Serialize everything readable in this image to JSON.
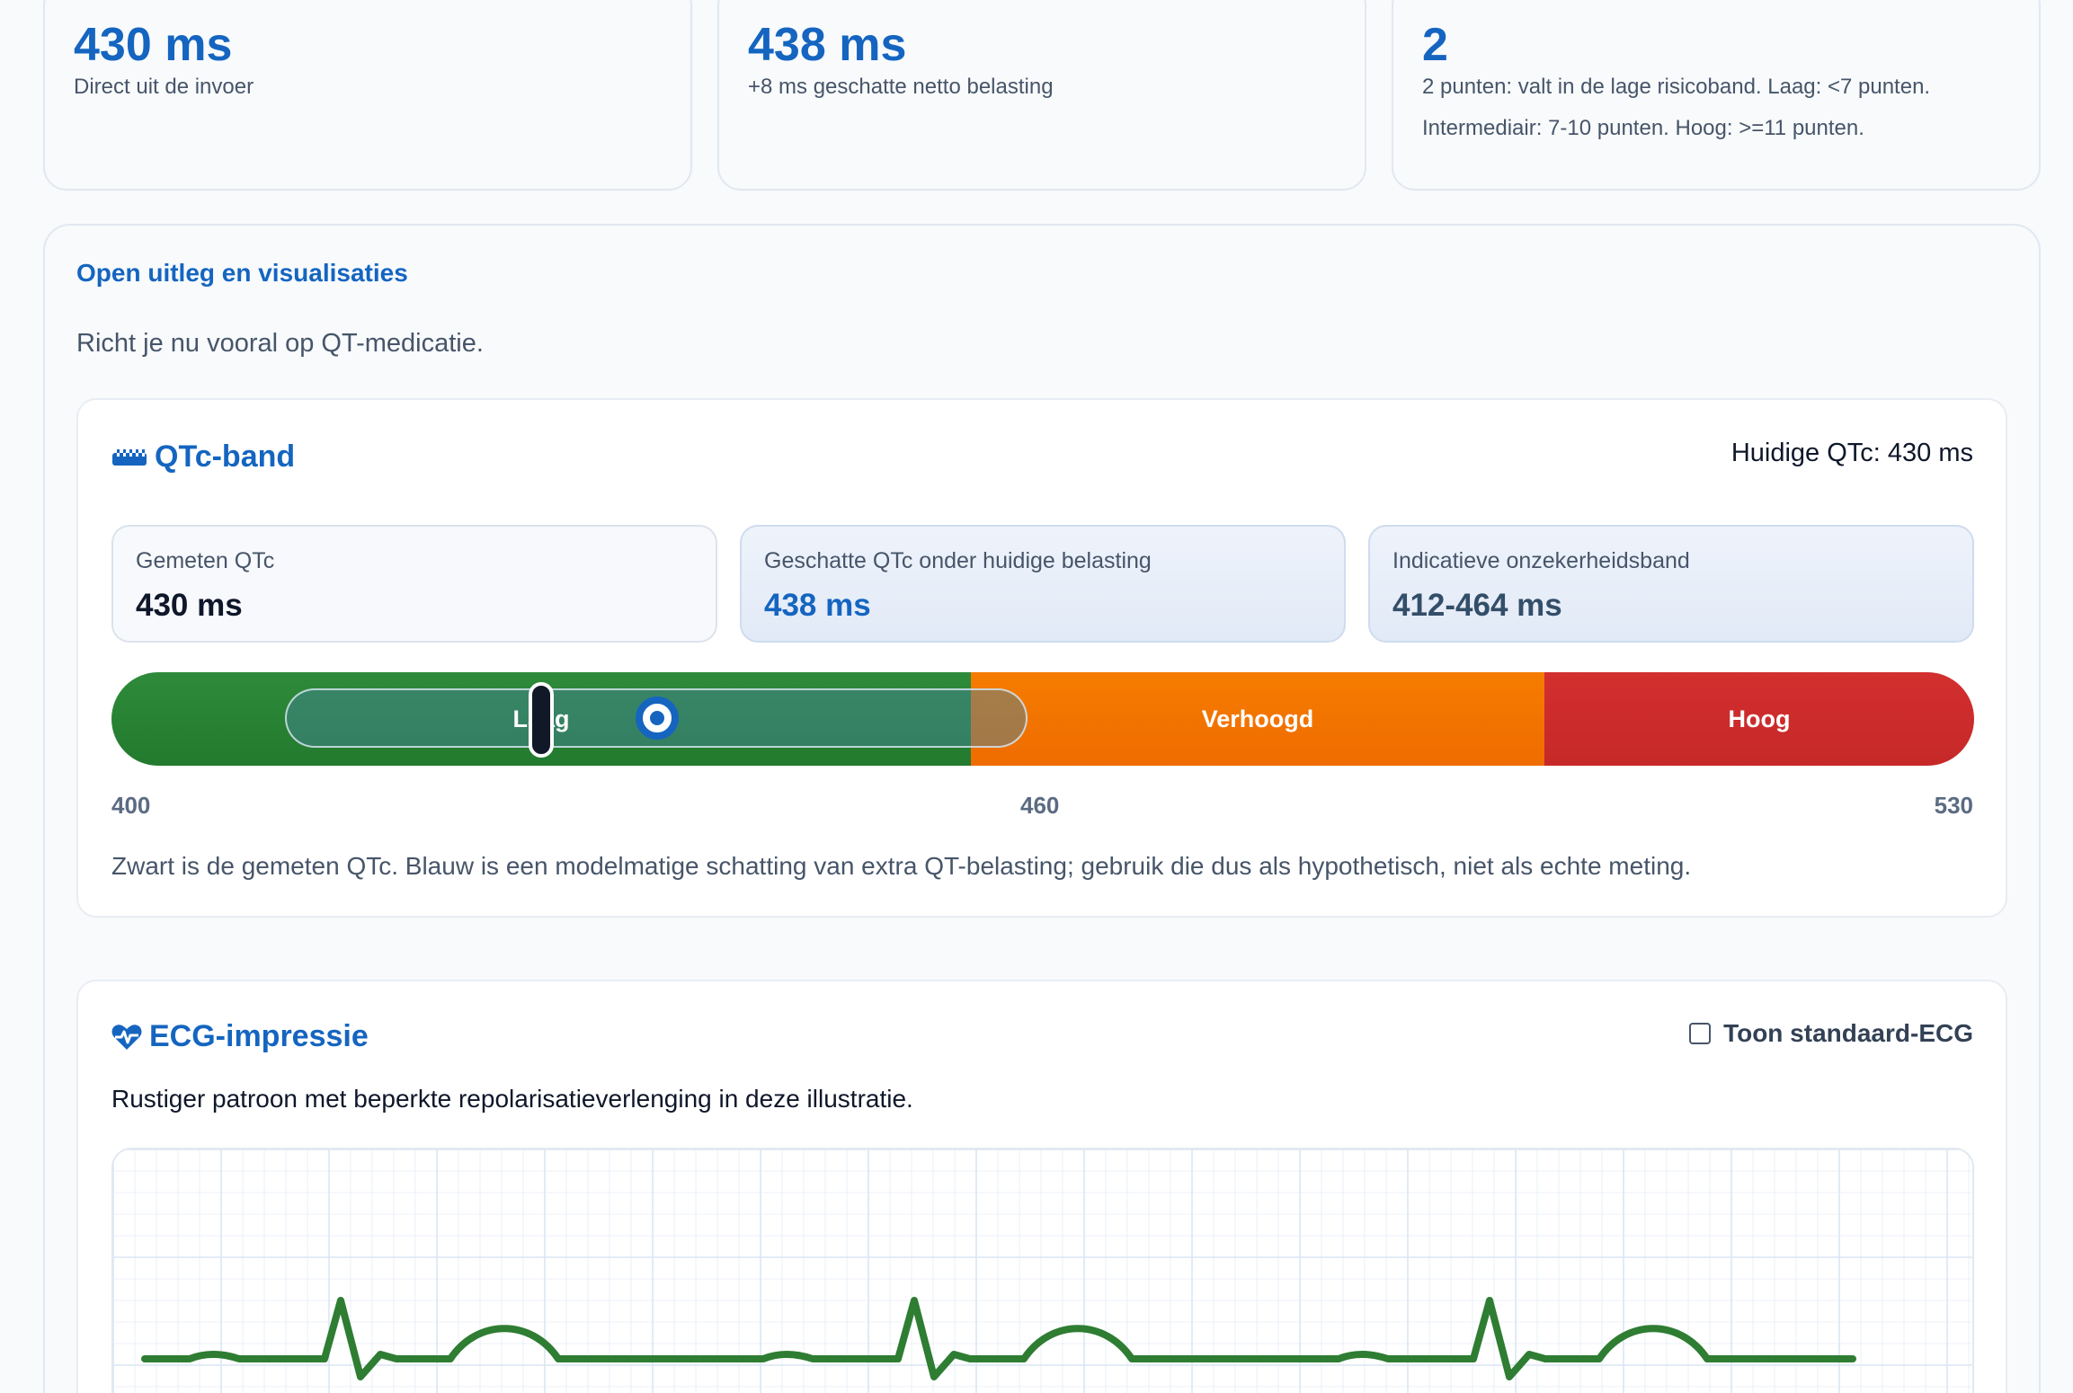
{
  "stats": [
    {
      "value": "430 ms",
      "note": "Direct uit de invoer"
    },
    {
      "value": "438 ms",
      "note": "+8 ms geschatte netto belasting"
    },
    {
      "value": "2",
      "note": "2 punten: valt in de lage risicoband. Laag: <7 punten. Intermediair: 7-10 punten. Hoog: >=11 punten."
    }
  ],
  "explain": {
    "link_label": "Open uitleg en visualisaties",
    "focus_text": "Richt je nu vooral op QT-medicatie."
  },
  "qtc_band": {
    "title": "QTc-band",
    "title_icon": "ruler-icon",
    "current": "Huidige QTc: 430 ms",
    "metrics": [
      {
        "label": "Gemeten QTc",
        "value": "430 ms"
      },
      {
        "label": "Geschatte QTc onder huidige belasting",
        "value": "438 ms"
      },
      {
        "label": "Indicatieve onzekerheidsband",
        "value": "412-464 ms"
      }
    ],
    "segments": [
      {
        "label": "Laag",
        "color": "#2e8b3a"
      },
      {
        "label": "Verhoogd",
        "color": "#f57c00"
      },
      {
        "label": "Hoog",
        "color": "#d32f2f"
      }
    ],
    "scale": {
      "min": "400",
      "mid": "460",
      "max": "530"
    },
    "measured_ms": 430,
    "estimated_ms": 438,
    "uncertainty_ms": [
      412,
      464
    ],
    "footnote": "Zwart is de gemeten QTc. Blauw is een modelmatige schatting van extra QT-belasting; gebruik die dus als hypothetisch, niet als echte meting."
  },
  "ecg": {
    "title": "ECG-impressie",
    "title_icon": "heart-pulse-icon",
    "toggle_label": "Toon standaard-ECG",
    "toggle_checked": false,
    "description": "Rustiger patroon met beperkte repolarisatieverlenging in deze illustratie.",
    "trace_color": "#2e7d32",
    "grid_color": "#dbe6f3"
  }
}
